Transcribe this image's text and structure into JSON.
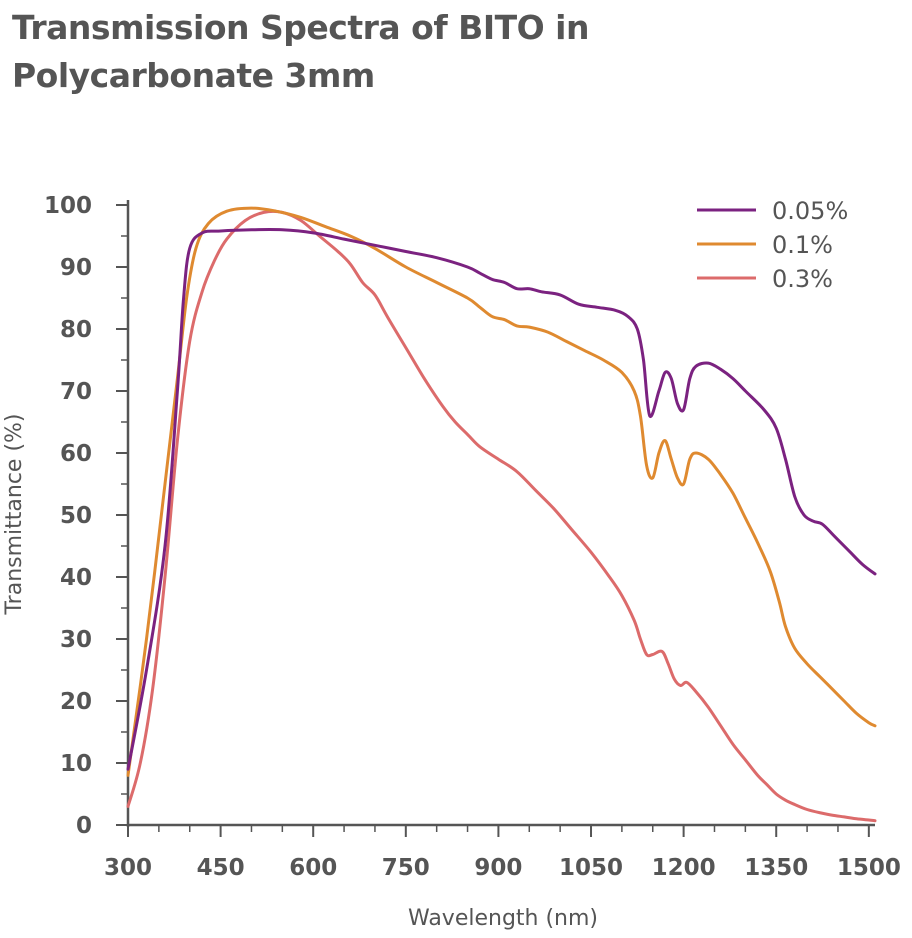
{
  "title_line1": "Transmission Spectra of BITO in",
  "title_line2": "Polycarbonate 3mm",
  "chart_data": {
    "type": "line",
    "title": "Transmission Spectra of BITO in Polycarbonate 3mm",
    "xlabel": "Wavelength (nm)",
    "ylabel": "Transmittance (%)",
    "xlim": [
      300,
      1510
    ],
    "ylim": [
      0,
      100
    ],
    "xticks": [
      300,
      450,
      600,
      750,
      900,
      1050,
      1200,
      1350,
      1500
    ],
    "yticks": [
      0,
      10,
      20,
      30,
      40,
      50,
      60,
      70,
      80,
      90,
      100
    ],
    "grid": false,
    "legend_position": "top-right",
    "series": [
      {
        "name": "0.05%",
        "color": "#7b2280",
        "points": [
          [
            300,
            9
          ],
          [
            330,
            25
          ],
          [
            360,
            45
          ],
          [
            380,
            70
          ],
          [
            390,
            85
          ],
          [
            400,
            93
          ],
          [
            420,
            95.5
          ],
          [
            450,
            95.8
          ],
          [
            500,
            96
          ],
          [
            550,
            96
          ],
          [
            600,
            95.5
          ],
          [
            650,
            94.5
          ],
          [
            700,
            93.5
          ],
          [
            750,
            92.5
          ],
          [
            800,
            91.5
          ],
          [
            850,
            90
          ],
          [
            870,
            89
          ],
          [
            890,
            88
          ],
          [
            910,
            87.5
          ],
          [
            930,
            86.5
          ],
          [
            950,
            86.5
          ],
          [
            970,
            86
          ],
          [
            1000,
            85.5
          ],
          [
            1030,
            84
          ],
          [
            1060,
            83.5
          ],
          [
            1090,
            83
          ],
          [
            1110,
            82
          ],
          [
            1125,
            80
          ],
          [
            1135,
            75
          ],
          [
            1145,
            66
          ],
          [
            1160,
            70
          ],
          [
            1170,
            73
          ],
          [
            1180,
            72
          ],
          [
            1190,
            68
          ],
          [
            1200,
            67
          ],
          [
            1210,
            72
          ],
          [
            1220,
            74
          ],
          [
            1240,
            74.5
          ],
          [
            1260,
            73.5
          ],
          [
            1280,
            72
          ],
          [
            1300,
            70
          ],
          [
            1330,
            67
          ],
          [
            1350,
            64
          ],
          [
            1365,
            59
          ],
          [
            1380,
            53
          ],
          [
            1395,
            50
          ],
          [
            1410,
            49
          ],
          [
            1425,
            48.5
          ],
          [
            1445,
            46.5
          ],
          [
            1470,
            44
          ],
          [
            1490,
            42
          ],
          [
            1510,
            40.5
          ]
        ]
      },
      {
        "name": "0.1%",
        "color": "#df8a30",
        "points": [
          [
            300,
            8
          ],
          [
            330,
            30
          ],
          [
            360,
            55
          ],
          [
            380,
            72
          ],
          [
            395,
            85
          ],
          [
            410,
            93
          ],
          [
            430,
            97
          ],
          [
            460,
            99
          ],
          [
            500,
            99.5
          ],
          [
            540,
            99
          ],
          [
            580,
            98
          ],
          [
            620,
            96.5
          ],
          [
            660,
            95
          ],
          [
            700,
            93
          ],
          [
            750,
            90
          ],
          [
            800,
            87.5
          ],
          [
            850,
            85
          ],
          [
            870,
            83.5
          ],
          [
            890,
            82
          ],
          [
            910,
            81.5
          ],
          [
            930,
            80.5
          ],
          [
            950,
            80.3
          ],
          [
            980,
            79.5
          ],
          [
            1010,
            78
          ],
          [
            1040,
            76.5
          ],
          [
            1070,
            75
          ],
          [
            1100,
            73
          ],
          [
            1120,
            70
          ],
          [
            1130,
            66
          ],
          [
            1140,
            58
          ],
          [
            1150,
            56
          ],
          [
            1160,
            60
          ],
          [
            1170,
            62
          ],
          [
            1180,
            59
          ],
          [
            1190,
            56
          ],
          [
            1200,
            55
          ],
          [
            1210,
            59
          ],
          [
            1220,
            60
          ],
          [
            1240,
            59
          ],
          [
            1260,
            56.5
          ],
          [
            1280,
            53.5
          ],
          [
            1300,
            49.5
          ],
          [
            1320,
            45.5
          ],
          [
            1340,
            41
          ],
          [
            1355,
            36
          ],
          [
            1365,
            32
          ],
          [
            1380,
            28.5
          ],
          [
            1400,
            26
          ],
          [
            1420,
            24
          ],
          [
            1440,
            22
          ],
          [
            1460,
            20
          ],
          [
            1480,
            18
          ],
          [
            1500,
            16.5
          ],
          [
            1510,
            16
          ]
        ]
      },
      {
        "name": "0.3%",
        "color": "#dc6b6b",
        "points": [
          [
            300,
            3
          ],
          [
            320,
            10
          ],
          [
            340,
            22
          ],
          [
            360,
            40
          ],
          [
            380,
            62
          ],
          [
            400,
            78
          ],
          [
            420,
            86
          ],
          [
            440,
            91
          ],
          [
            460,
            94.5
          ],
          [
            490,
            97.5
          ],
          [
            520,
            98.8
          ],
          [
            550,
            98.8
          ],
          [
            580,
            97.5
          ],
          [
            610,
            95
          ],
          [
            640,
            92.5
          ],
          [
            660,
            90.5
          ],
          [
            680,
            87.5
          ],
          [
            700,
            85.5
          ],
          [
            720,
            82
          ],
          [
            750,
            77
          ],
          [
            780,
            72
          ],
          [
            810,
            67.5
          ],
          [
            830,
            65
          ],
          [
            850,
            63
          ],
          [
            870,
            61
          ],
          [
            900,
            59
          ],
          [
            930,
            57
          ],
          [
            960,
            54
          ],
          [
            990,
            51
          ],
          [
            1020,
            47.5
          ],
          [
            1050,
            44
          ],
          [
            1080,
            40
          ],
          [
            1100,
            37
          ],
          [
            1120,
            33
          ],
          [
            1130,
            30
          ],
          [
            1140,
            27.5
          ],
          [
            1150,
            27.5
          ],
          [
            1165,
            28
          ],
          [
            1175,
            26
          ],
          [
            1185,
            23.5
          ],
          [
            1195,
            22.5
          ],
          [
            1205,
            23
          ],
          [
            1220,
            21.5
          ],
          [
            1240,
            19
          ],
          [
            1260,
            16
          ],
          [
            1280,
            13
          ],
          [
            1300,
            10.5
          ],
          [
            1320,
            8
          ],
          [
            1335,
            6.5
          ],
          [
            1350,
            5
          ],
          [
            1365,
            4
          ],
          [
            1380,
            3.3
          ],
          [
            1400,
            2.5
          ],
          [
            1420,
            2
          ],
          [
            1440,
            1.6
          ],
          [
            1460,
            1.3
          ],
          [
            1480,
            1
          ],
          [
            1500,
            0.8
          ],
          [
            1510,
            0.7
          ]
        ]
      }
    ]
  }
}
